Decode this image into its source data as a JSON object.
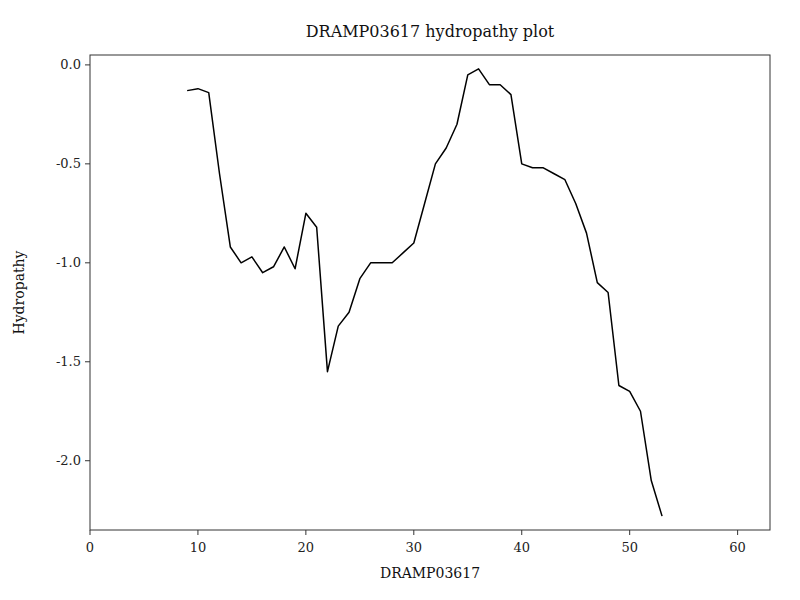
{
  "chart_data": {
    "type": "line",
    "title": "DRAMP03617 hydropathy plot",
    "xlabel": "DRAMP03617",
    "ylabel": "Hydropathy",
    "xlim": [
      0,
      63
    ],
    "ylim": [
      -2.35,
      0.05
    ],
    "xticks": [
      0,
      10,
      20,
      30,
      40,
      50,
      60
    ],
    "yticks": [
      {
        "value": 0.0,
        "label": "0.0"
      },
      {
        "value": -0.5,
        "label": "-0.5"
      },
      {
        "value": -1.0,
        "label": "-1.0"
      },
      {
        "value": -1.5,
        "label": "-1.5"
      },
      {
        "value": -2.0,
        "label": "-2.0"
      }
    ],
    "color": "#000000",
    "grid": false,
    "x": [
      9,
      10,
      11,
      12,
      13,
      14,
      15,
      16,
      17,
      18,
      19,
      20,
      21,
      22,
      23,
      24,
      25,
      26,
      27,
      28,
      29,
      30,
      31,
      32,
      33,
      34,
      35,
      36,
      37,
      38,
      39,
      40,
      41,
      42,
      43,
      44,
      45,
      46,
      47,
      48,
      49,
      50,
      51,
      52,
      53
    ],
    "values": [
      -0.13,
      -0.12,
      -0.14,
      -0.55,
      -0.92,
      -1.0,
      -0.97,
      -1.05,
      -1.02,
      -0.92,
      -1.03,
      -0.75,
      -0.82,
      -1.55,
      -1.32,
      -1.25,
      -1.08,
      -1.0,
      -1.0,
      -1.0,
      -0.95,
      -0.9,
      -0.7,
      -0.5,
      -0.42,
      -0.3,
      -0.05,
      -0.02,
      -0.1,
      -0.1,
      -0.15,
      -0.5,
      -0.52,
      -0.52,
      -0.55,
      -0.58,
      -0.7,
      -0.85,
      -1.1,
      -1.15,
      -1.62,
      -1.65,
      -1.75,
      -2.1,
      -2.28
    ]
  }
}
